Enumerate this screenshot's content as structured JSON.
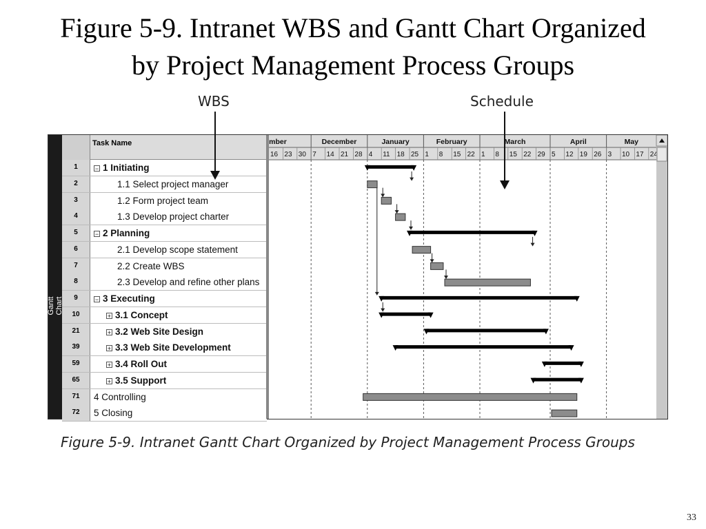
{
  "slide": {
    "title_line1": "Figure 5-9.  Intranet WBS and Gantt Chart Organized",
    "title_line2": "by Project Management Process Groups",
    "wbs_label": "WBS",
    "schedule_label": "Schedule",
    "caption": "Figure 5-9. Intranet Gantt Chart Organized by Project Management Process Groups",
    "page_number": "33"
  },
  "gantt": {
    "side_label": "Gantt Chart",
    "task_header": "Task Name",
    "months": [
      "mber",
      "December",
      "January",
      "February",
      "March",
      "April",
      "May"
    ],
    "weeks": [
      "16",
      "23",
      "30",
      "7",
      "14",
      "21",
      "28",
      "4",
      "11",
      "18",
      "25",
      "1",
      "8",
      "15",
      "22",
      "1",
      "8",
      "15",
      "22",
      "29",
      "5",
      "12",
      "19",
      "26",
      "3",
      "10",
      "17",
      "24"
    ],
    "month_week_counts": [
      3,
      4,
      4,
      4,
      5,
      4,
      4
    ],
    "week_origin": "Nov 16",
    "tasks": [
      {
        "id": "1",
        "name": "1 Initiating",
        "indent": 0,
        "bold": true,
        "expander": "−",
        "type": "summary",
        "start": 7,
        "end": 10.3
      },
      {
        "id": "2",
        "name": "1.1 Select project manager",
        "indent": 2,
        "bold": false,
        "expander": "",
        "type": "task",
        "start": 7,
        "end": 7.7
      },
      {
        "id": "3",
        "name": "1.2 Form project team",
        "indent": 2,
        "bold": false,
        "expander": "",
        "type": "task",
        "start": 8,
        "end": 8.7
      },
      {
        "id": "4",
        "name": "1.3 Develop project charter",
        "indent": 2,
        "bold": false,
        "expander": "",
        "type": "task",
        "start": 9,
        "end": 9.7
      },
      {
        "id": "5",
        "name": "2 Planning",
        "indent": 0,
        "bold": true,
        "expander": "−",
        "type": "summary",
        "start": 10,
        "end": 18.9
      },
      {
        "id": "6",
        "name": "2.1 Develop scope statement",
        "indent": 2,
        "bold": false,
        "expander": "",
        "type": "task",
        "start": 10.2,
        "end": 11.5
      },
      {
        "id": "7",
        "name": "2.2 Create WBS",
        "indent": 2,
        "bold": false,
        "expander": "",
        "type": "task",
        "start": 11.5,
        "end": 12.4
      },
      {
        "id": "8",
        "name": "2.3 Develop and refine other plans",
        "indent": 2,
        "bold": false,
        "expander": "",
        "type": "task",
        "start": 12.5,
        "end": 18.6
      },
      {
        "id": "9",
        "name": "3 Executing",
        "indent": 0,
        "bold": true,
        "expander": "−",
        "type": "summary",
        "start": 8,
        "end": 21.9
      },
      {
        "id": "10",
        "name": "3.1 Concept",
        "indent": 1,
        "bold": true,
        "expander": "+",
        "type": "summary",
        "start": 8,
        "end": 11.5
      },
      {
        "id": "21",
        "name": "3.2 Web Site Design",
        "indent": 1,
        "bold": true,
        "expander": "+",
        "type": "summary",
        "start": 11.2,
        "end": 19.7
      },
      {
        "id": "39",
        "name": "3.3 Web Site Development",
        "indent": 1,
        "bold": true,
        "expander": "+",
        "type": "summary",
        "start": 9,
        "end": 21.5
      },
      {
        "id": "59",
        "name": "3.4 Roll Out",
        "indent": 1,
        "bold": true,
        "expander": "+",
        "type": "summary",
        "start": 19.6,
        "end": 22.2
      },
      {
        "id": "65",
        "name": "3.5 Support",
        "indent": 1,
        "bold": true,
        "expander": "+",
        "type": "summary",
        "start": 18.8,
        "end": 22.2
      },
      {
        "id": "71",
        "name": "4 Controlling",
        "indent": 0,
        "bold": false,
        "expander": "",
        "type": "task",
        "start": 6.7,
        "end": 21.9
      },
      {
        "id": "72",
        "name": "5 Closing",
        "indent": 0,
        "bold": false,
        "expander": "",
        "type": "task",
        "start": 20.1,
        "end": 21.9
      }
    ],
    "dependencies": [
      [
        "1",
        "2"
      ],
      [
        "2",
        "3"
      ],
      [
        "3",
        "4"
      ],
      [
        "4",
        "5"
      ],
      [
        "5",
        "6"
      ],
      [
        "6",
        "7"
      ],
      [
        "7",
        "8"
      ],
      [
        "2",
        "9"
      ],
      [
        "9",
        "10"
      ]
    ],
    "colors": {
      "summary": "#000000",
      "task_bar": "#8c8c8c",
      "task_border": "#333333",
      "arrow": "#222222"
    }
  }
}
